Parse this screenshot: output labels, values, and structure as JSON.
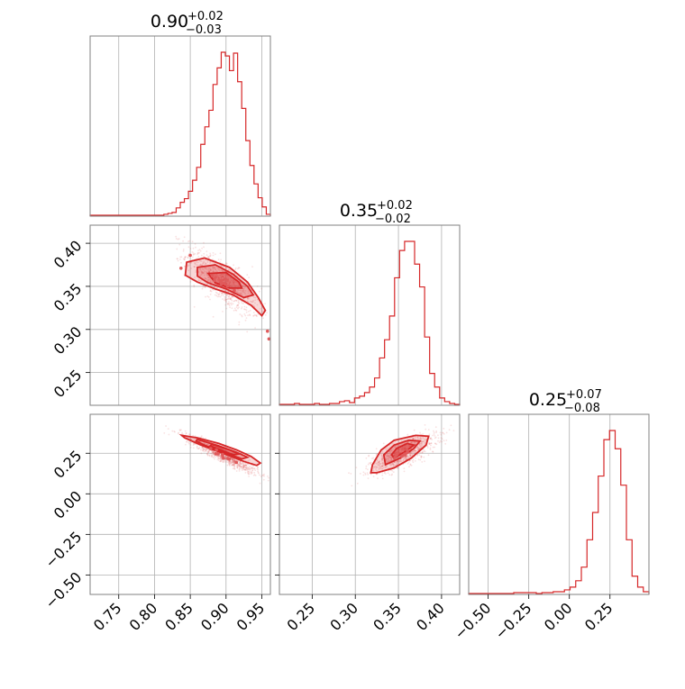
{
  "colors": {
    "accent": "#d62728",
    "grid": "#b0b0b0",
    "frame": "#808080"
  },
  "chart_data": {
    "type": "corner",
    "grid": true,
    "parameters": [
      {
        "title_main": "0.90",
        "title_up": "+0.02",
        "title_down": "−0.03",
        "range": [
          0.71,
          0.962
        ],
        "ticks": [
          0.75,
          0.8,
          0.85,
          0.9,
          0.95
        ],
        "tick_labels": [
          "0.75",
          "0.80",
          "0.85",
          "0.90",
          "0.95"
        ],
        "hist_counts": [
          1,
          1,
          1,
          1,
          1,
          1,
          1,
          1,
          1,
          1,
          1,
          1,
          1,
          1,
          1,
          1,
          1,
          1,
          2,
          3,
          4,
          9,
          15,
          19,
          27,
          39,
          53,
          78,
          97,
          115,
          143,
          161,
          178,
          174,
          158,
          177,
          146,
          117,
          82,
          55,
          35,
          20,
          10,
          2
        ]
      },
      {
        "title_main": "0.35",
        "title_up": "+0.02",
        "title_down": "−0.02",
        "range": [
          0.212,
          0.421
        ],
        "ticks": [
          0.25,
          0.3,
          0.35,
          0.4
        ],
        "tick_labels": [
          "0.25",
          "0.30",
          "0.35",
          "0.40"
        ],
        "hist_counts": [
          1,
          1,
          1,
          2,
          1,
          1,
          1,
          2,
          1,
          1,
          2,
          2,
          4,
          5,
          3,
          8,
          10,
          14,
          20,
          30,
          52,
          72,
          98,
          140,
          170,
          180,
          180,
          155,
          130,
          75,
          35,
          20,
          8,
          4,
          2,
          1
        ]
      },
      {
        "title_main": "0.25",
        "title_up": "+0.07",
        "title_down": "−0.08",
        "range": [
          -0.62,
          0.49
        ],
        "ticks": [
          -0.5,
          -0.25,
          0.0,
          0.25
        ],
        "tick_labels": [
          "−0.50",
          "−0.25",
          "0.00",
          "0.25"
        ],
        "hist_counts": [
          1,
          1,
          1,
          1,
          1,
          1,
          1,
          1,
          2,
          2,
          2,
          2,
          1,
          2,
          2,
          3,
          3,
          5,
          8,
          15,
          30,
          60,
          90,
          130,
          170,
          180,
          160,
          120,
          60,
          20,
          8,
          3
        ]
      }
    ],
    "y_axes": {
      "row1": {
        "ticks": [
          0.25,
          0.3,
          0.35,
          0.4
        ],
        "tick_labels": [
          "0.25",
          "0.30",
          "0.35",
          "0.40"
        ]
      },
      "row2": {
        "ticks": [
          -0.5,
          -0.25,
          0.0,
          0.25
        ],
        "tick_labels": [
          "−0.50",
          "−0.25",
          "0.00",
          "0.25"
        ]
      }
    },
    "joint_2d": [
      {
        "x_param": 0,
        "y_param": 1,
        "center": [
          0.895,
          0.355
        ],
        "cov": [
          [
            0.00064,
            -0.00038
          ],
          [
            -0.00038,
            0.00038
          ]
        ],
        "levels": [
          {
            "points": [
              [
                0.845,
                0.378
              ],
              [
                0.87,
                0.383
              ],
              [
                0.905,
                0.372
              ],
              [
                0.93,
                0.355
              ],
              [
                0.945,
                0.337
              ],
              [
                0.955,
                0.322
              ],
              [
                0.95,
                0.316
              ],
              [
                0.935,
                0.328
              ],
              [
                0.91,
                0.34
              ],
              [
                0.885,
                0.347
              ],
              [
                0.86,
                0.355
              ],
              [
                0.843,
                0.363
              ]
            ]
          },
          {
            "points": [
              [
                0.86,
                0.372
              ],
              [
                0.885,
                0.375
              ],
              [
                0.91,
                0.364
              ],
              [
                0.93,
                0.35
              ],
              [
                0.938,
                0.34
              ],
              [
                0.925,
                0.337
              ],
              [
                0.9,
                0.347
              ],
              [
                0.875,
                0.354
              ],
              [
                0.86,
                0.362
              ]
            ]
          },
          {
            "points": [
              [
                0.875,
                0.365
              ],
              [
                0.9,
                0.366
              ],
              [
                0.918,
                0.355
              ],
              [
                0.922,
                0.348
              ],
              [
                0.905,
                0.348
              ],
              [
                0.885,
                0.354
              ]
            ]
          }
        ],
        "outliers": [
          [
            0.837,
            0.371
          ],
          [
            0.85,
            0.386
          ],
          [
            0.958,
            0.298
          ],
          [
            0.96,
            0.289
          ]
        ]
      },
      {
        "x_param": 0,
        "y_param": 2,
        "center": [
          0.895,
          0.24
        ],
        "cov": [
          [
            0.00064,
            -0.0014
          ],
          [
            -0.0014,
            0.0035
          ]
        ],
        "levels": [
          {
            "points": [
              [
                0.838,
                0.36
              ],
              [
                0.86,
                0.345
              ],
              [
                0.89,
                0.31
              ],
              [
                0.915,
                0.27
              ],
              [
                0.935,
                0.23
              ],
              [
                0.948,
                0.19
              ],
              [
                0.943,
                0.175
              ],
              [
                0.925,
                0.2
              ],
              [
                0.895,
                0.25
              ],
              [
                0.865,
                0.3
              ],
              [
                0.842,
                0.345
              ]
            ]
          },
          {
            "points": [
              [
                0.86,
                0.335
              ],
              [
                0.89,
                0.295
              ],
              [
                0.915,
                0.255
              ],
              [
                0.93,
                0.225
              ],
              [
                0.922,
                0.215
              ],
              [
                0.9,
                0.25
              ],
              [
                0.872,
                0.295
              ],
              [
                0.858,
                0.325
              ]
            ]
          },
          {
            "points": [
              [
                0.88,
                0.305
              ],
              [
                0.905,
                0.27
              ],
              [
                0.918,
                0.245
              ],
              [
                0.91,
                0.24
              ],
              [
                0.893,
                0.27
              ],
              [
                0.878,
                0.295
              ]
            ]
          }
        ],
        "outliers": []
      },
      {
        "x_param": 1,
        "y_param": 2,
        "center": [
          0.355,
          0.25
        ],
        "cov": [
          [
            0.00038,
            0.00085
          ],
          [
            0.00085,
            0.0035
          ]
        ],
        "levels": [
          {
            "points": [
              [
                0.325,
                0.13
              ],
              [
                0.345,
                0.16
              ],
              [
                0.365,
                0.22
              ],
              [
                0.382,
                0.3
              ],
              [
                0.385,
                0.355
              ],
              [
                0.37,
                0.36
              ],
              [
                0.345,
                0.33
              ],
              [
                0.33,
                0.27
              ],
              [
                0.32,
                0.18
              ],
              [
                0.318,
                0.13
              ]
            ]
          },
          {
            "points": [
              [
                0.335,
                0.18
              ],
              [
                0.352,
                0.22
              ],
              [
                0.368,
                0.28
              ],
              [
                0.375,
                0.325
              ],
              [
                0.362,
                0.33
              ],
              [
                0.345,
                0.3
              ],
              [
                0.333,
                0.24
              ]
            ]
          },
          {
            "points": [
              [
                0.345,
                0.22
              ],
              [
                0.358,
                0.26
              ],
              [
                0.368,
                0.3
              ],
              [
                0.36,
                0.31
              ],
              [
                0.348,
                0.28
              ],
              [
                0.342,
                0.24
              ]
            ]
          }
        ],
        "outliers": []
      }
    ]
  }
}
